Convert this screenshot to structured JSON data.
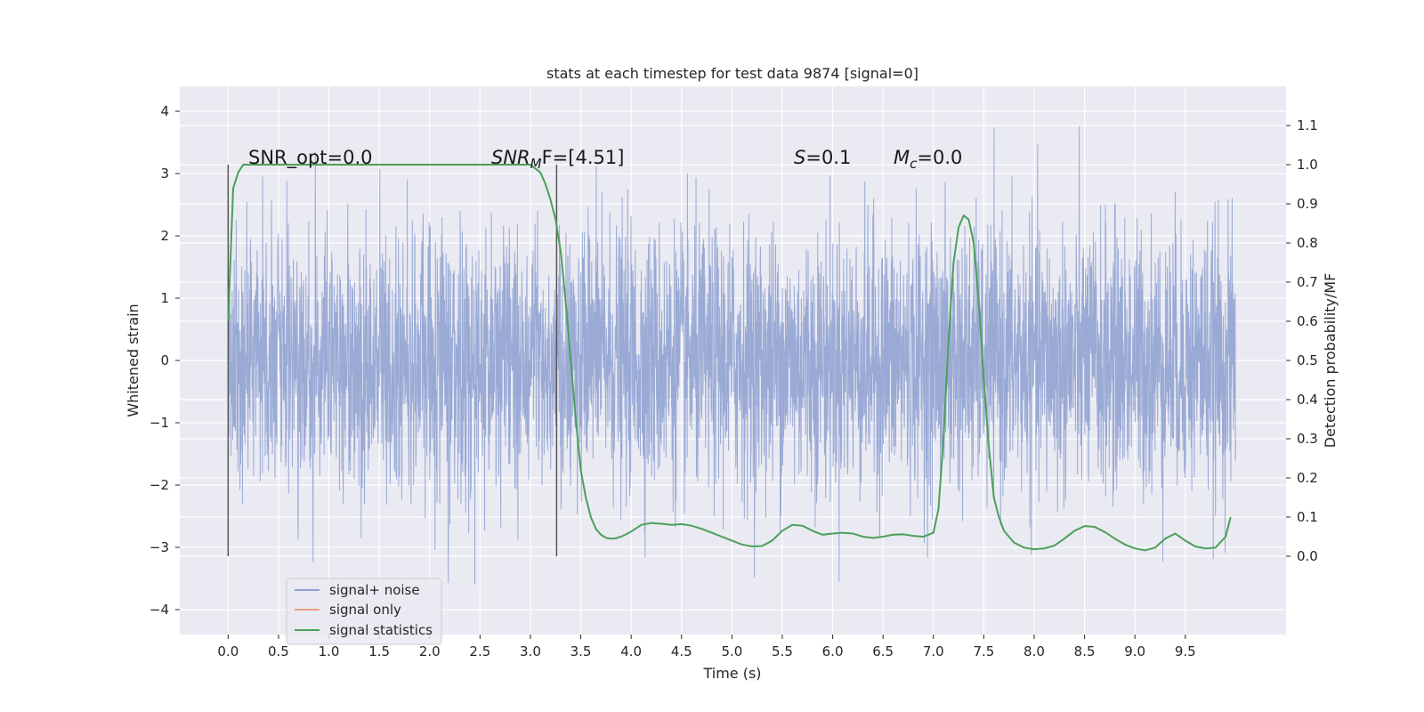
{
  "chart_data": {
    "type": "line",
    "title": "stats at each timestep for test data 9874 [signal=0]",
    "xlabel": "Time (s)",
    "ylabel": "Whitened strain",
    "y2label": "Detection probability/MF",
    "xlim": [
      -0.48,
      10.5
    ],
    "ylim": [
      -4.4,
      4.4
    ],
    "y2lim": [
      -0.2,
      1.2
    ],
    "x_ticks": [
      "0.0",
      "0.5",
      "1.0",
      "1.5",
      "2.0",
      "2.5",
      "3.0",
      "3.5",
      "4.0",
      "4.5",
      "5.0",
      "5.5",
      "6.0",
      "6.5",
      "7.0",
      "7.5",
      "8.0",
      "8.5",
      "9.0",
      "9.5"
    ],
    "y_ticks": [
      "4",
      "3",
      "2",
      "1",
      "0",
      "−1",
      "−2",
      "−3",
      "−4"
    ],
    "y2_ticks": [
      "1.1",
      "1.0",
      "0.9",
      "0.8",
      "0.7",
      "0.6",
      "0.5",
      "0.4",
      "0.3",
      "0.2",
      "0.1",
      "0.0"
    ],
    "grid": true,
    "legend_position": "lower-left",
    "annotations": {
      "snr_opt": "SNR_opt=0.0",
      "snr_mf": "SNR_MF=[4.51]",
      "snr_mf_italic": "SNR",
      "snr_mf_sub": "M",
      "snr_mf_rest": "F=[4.51]",
      "s": "S=0.1",
      "s_italic": "S",
      "s_rest": "=0.1",
      "mc": "M_c=0.0",
      "mc_italic": "M",
      "mc_sub": "c",
      "mc_rest": "=0.0"
    },
    "vlines": [
      0.0,
      3.26
    ],
    "series": [
      {
        "name": "signal+ noise",
        "color": "#8c9fd0",
        "x_range": [
          0,
          10
        ],
        "description_values": "whitened noise strain, roughly Gaussian, amplitude range about -4 to 4"
      },
      {
        "name": "signal only",
        "color": "#e9a183",
        "values": []
      },
      {
        "name": "signal statistics",
        "color": "#4c9f5b",
        "x": [
          0.0,
          0.05,
          0.1,
          0.15,
          0.2,
          0.3,
          0.5,
          1.0,
          1.5,
          2.0,
          2.5,
          3.0,
          3.05,
          3.1,
          3.15,
          3.2,
          3.25,
          3.3,
          3.35,
          3.4,
          3.45,
          3.5,
          3.55,
          3.6,
          3.65,
          3.7,
          3.75,
          3.8,
          3.85,
          3.9,
          3.95,
          4.0,
          4.1,
          4.2,
          4.3,
          4.4,
          4.5,
          4.6,
          4.7,
          4.8,
          4.9,
          5.0,
          5.1,
          5.2,
          5.3,
          5.4,
          5.5,
          5.6,
          5.7,
          5.8,
          5.9,
          6.0,
          6.1,
          6.2,
          6.3,
          6.4,
          6.5,
          6.6,
          6.7,
          6.8,
          6.9,
          7.0,
          7.05,
          7.1,
          7.15,
          7.2,
          7.25,
          7.3,
          7.35,
          7.4,
          7.45,
          7.5,
          7.55,
          7.6,
          7.65,
          7.7,
          7.8,
          7.9,
          8.0,
          8.1,
          8.2,
          8.3,
          8.4,
          8.5,
          8.6,
          8.7,
          8.8,
          8.9,
          9.0,
          9.1,
          9.2,
          9.3,
          9.4,
          9.5,
          9.6,
          9.7,
          9.8,
          9.9,
          9.95
        ],
        "values": [
          0.6,
          0.94,
          0.98,
          1.0,
          1.0,
          1.0,
          1.0,
          1.0,
          1.0,
          1.0,
          1.0,
          1.0,
          0.99,
          0.98,
          0.95,
          0.91,
          0.86,
          0.78,
          0.65,
          0.5,
          0.35,
          0.22,
          0.15,
          0.1,
          0.07,
          0.055,
          0.047,
          0.045,
          0.046,
          0.05,
          0.056,
          0.063,
          0.08,
          0.085,
          0.083,
          0.08,
          0.082,
          0.078,
          0.07,
          0.06,
          0.05,
          0.04,
          0.03,
          0.025,
          0.026,
          0.04,
          0.065,
          0.08,
          0.078,
          0.065,
          0.055,
          0.058,
          0.06,
          0.058,
          0.05,
          0.047,
          0.05,
          0.055,
          0.056,
          0.052,
          0.05,
          0.06,
          0.12,
          0.3,
          0.55,
          0.75,
          0.84,
          0.87,
          0.86,
          0.8,
          0.65,
          0.45,
          0.28,
          0.15,
          0.1,
          0.065,
          0.035,
          0.022,
          0.018,
          0.02,
          0.027,
          0.045,
          0.065,
          0.077,
          0.075,
          0.062,
          0.045,
          0.03,
          0.02,
          0.015,
          0.022,
          0.045,
          0.058,
          0.04,
          0.025,
          0.02,
          0.022,
          0.05,
          0.1
        ]
      }
    ]
  }
}
